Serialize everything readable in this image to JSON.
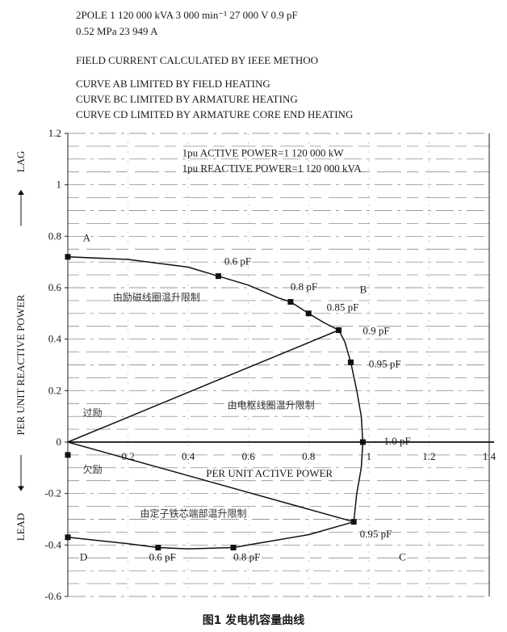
{
  "header": {
    "line1": "2POLE   1 120 000 kVA   3 000 min⁻¹   27 000 V   0.9 pF",
    "line2": "0.52 MPa   23 949 A",
    "line3": "FIELD CURRENT CALCULATED BY IEEE METHOO",
    "line4": "CURVE AB LIMITED BY FIELD HEATING",
    "line5": "CURVE BC LIMITED BY ARMATURE HEATING",
    "line6": "CURVE CD LIMITED BY ARMATURE CORE END HEATING"
  },
  "caption": "图1   发电机容量曲线",
  "chart_data": {
    "type": "line",
    "xlim": [
      0,
      1.4
    ],
    "ylim": [
      -0.6,
      1.2
    ],
    "x_ticks": [
      "0.2",
      "0.4",
      "0.6",
      "0.8",
      "1",
      "1.2",
      "1.4"
    ],
    "y_ticks": [
      "-0.6",
      "-0.4",
      "-0.2",
      "0",
      "0.2",
      "0.4",
      "0.6",
      "0.8",
      "1",
      "1.2"
    ],
    "xlabel": "PER UNIT ACTIVE POWER",
    "ylabel": "PER UNIT REACTIVE POWER",
    "lag_label": "LAG",
    "lead_label": "LEAD",
    "legend_lines": [
      "1pu ACTIVE POWER=1 120 000 kW",
      "1pu REACTIVE POWER=1 120 000 kVA"
    ],
    "grid": true,
    "series": [
      {
        "points": [
          [
            0,
            0.72
          ],
          [
            0.2,
            0.71
          ],
          [
            0.4,
            0.68
          ],
          [
            0.5,
            0.645
          ],
          [
            0.6,
            0.61
          ],
          [
            0.7,
            0.56
          ],
          [
            0.74,
            0.545
          ],
          [
            0.8,
            0.5
          ],
          [
            0.85,
            0.465
          ],
          [
            0.9,
            0.435
          ]
        ]
      },
      {
        "points": [
          [
            0.9,
            0.435
          ],
          [
            0.92,
            0.39
          ],
          [
            0.94,
            0.31
          ],
          [
            0.96,
            0.2
          ],
          [
            0.975,
            0.1
          ],
          [
            0.98,
            0
          ]
        ]
      },
      {
        "points": [
          [
            0.98,
            0
          ],
          [
            0.975,
            -0.1
          ],
          [
            0.96,
            -0.2
          ],
          [
            0.95,
            -0.31
          ]
        ]
      },
      {
        "points": [
          [
            0.95,
            -0.31
          ],
          [
            0.8,
            -0.36
          ],
          [
            0.6,
            -0.4
          ],
          [
            0.55,
            -0.41
          ],
          [
            0.4,
            -0.415
          ],
          [
            0.3,
            -0.41
          ],
          [
            0.2,
            -0.395
          ],
          [
            0,
            -0.37
          ]
        ]
      },
      {
        "points": [
          [
            0,
            0
          ],
          [
            0.9,
            0.435
          ]
        ]
      },
      {
        "points": [
          [
            0,
            0
          ],
          [
            0.95,
            -0.31
          ]
        ]
      }
    ],
    "markers": [
      [
        0,
        0.72
      ],
      [
        0.5,
        0.645
      ],
      [
        0.74,
        0.545
      ],
      [
        0.8,
        0.5
      ],
      [
        0.9,
        0.435
      ],
      [
        0.94,
        0.31
      ],
      [
        0.98,
        0
      ],
      [
        0.95,
        -0.31
      ],
      [
        0.3,
        -0.41
      ],
      [
        0.55,
        -0.41
      ],
      [
        0,
        -0.37
      ],
      [
        0,
        -0.05
      ]
    ],
    "annotations": [
      {
        "text": "A",
        "x": 0.05,
        "y": 0.78
      },
      {
        "text": "B",
        "x": 0.97,
        "y": 0.58
      },
      {
        "text": "C",
        "x": 1.1,
        "y": -0.46
      },
      {
        "text": "D",
        "x": 0.04,
        "y": -0.46
      },
      {
        "text": "0.6 pF",
        "x": 0.52,
        "y": 0.69
      },
      {
        "text": "0.8 pF",
        "x": 0.74,
        "y": 0.59
      },
      {
        "text": "0.85 pF",
        "x": 0.86,
        "y": 0.51
      },
      {
        "text": "0.9 pF",
        "x": 0.98,
        "y": 0.42
      },
      {
        "text": "0.95 pF",
        "x": 1.0,
        "y": 0.29
      },
      {
        "text": "1.0 pF",
        "x": 1.05,
        "y": -0.01
      },
      {
        "text": "0.95 pF",
        "x": 0.97,
        "y": -0.37
      },
      {
        "text": "0.6 pF",
        "x": 0.27,
        "y": -0.46
      },
      {
        "text": "0.8 pF",
        "x": 0.55,
        "y": -0.46
      },
      {
        "text": "由励磁线圈温升限制",
        "x": 0.15,
        "y": 0.55
      },
      {
        "text": "由电枢线圈温升限制",
        "x": 0.53,
        "y": 0.13
      },
      {
        "text": "由定子铁芯端部温升限制",
        "x": 0.24,
        "y": -0.29
      },
      {
        "text": "过励",
        "x": 0.05,
        "y": 0.1
      },
      {
        "text": "欠励",
        "x": 0.05,
        "y": -0.12
      }
    ]
  }
}
